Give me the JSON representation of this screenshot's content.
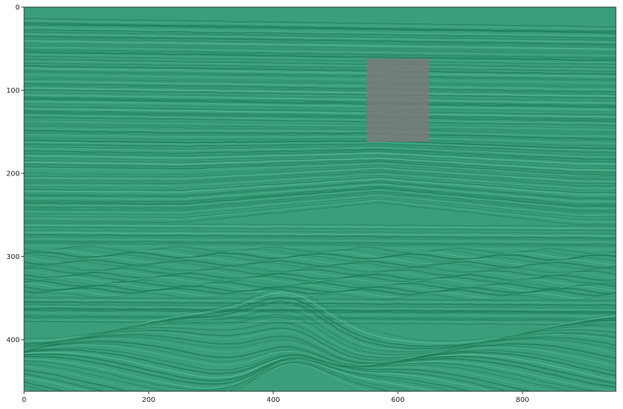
{
  "image": {
    "type": "seismic-section",
    "colormap": "teal-green",
    "colors": {
      "base": "#3a9e7a",
      "dark_reflector": "#1f7a57",
      "light_reflector": "#5cc09a",
      "highlight_box": "#7a7a7a"
    }
  },
  "axes": {
    "x_range": [
      0,
      950
    ],
    "y_range": [
      0,
      462
    ],
    "y_inverted": true,
    "x_ticks": [
      {
        "value": 0,
        "label": "0"
      },
      {
        "value": 200,
        "label": "200"
      },
      {
        "value": 400,
        "label": "400"
      },
      {
        "value": 600,
        "label": "600"
      },
      {
        "value": 800,
        "label": "800"
      }
    ],
    "y_ticks": [
      {
        "value": 0,
        "label": "0"
      },
      {
        "value": 100,
        "label": "100"
      },
      {
        "value": 200,
        "label": "200"
      },
      {
        "value": 300,
        "label": "300"
      },
      {
        "value": 400,
        "label": "400"
      }
    ]
  },
  "highlight_region": {
    "x_range": [
      550,
      650
    ],
    "y_range": [
      62,
      162
    ]
  }
}
